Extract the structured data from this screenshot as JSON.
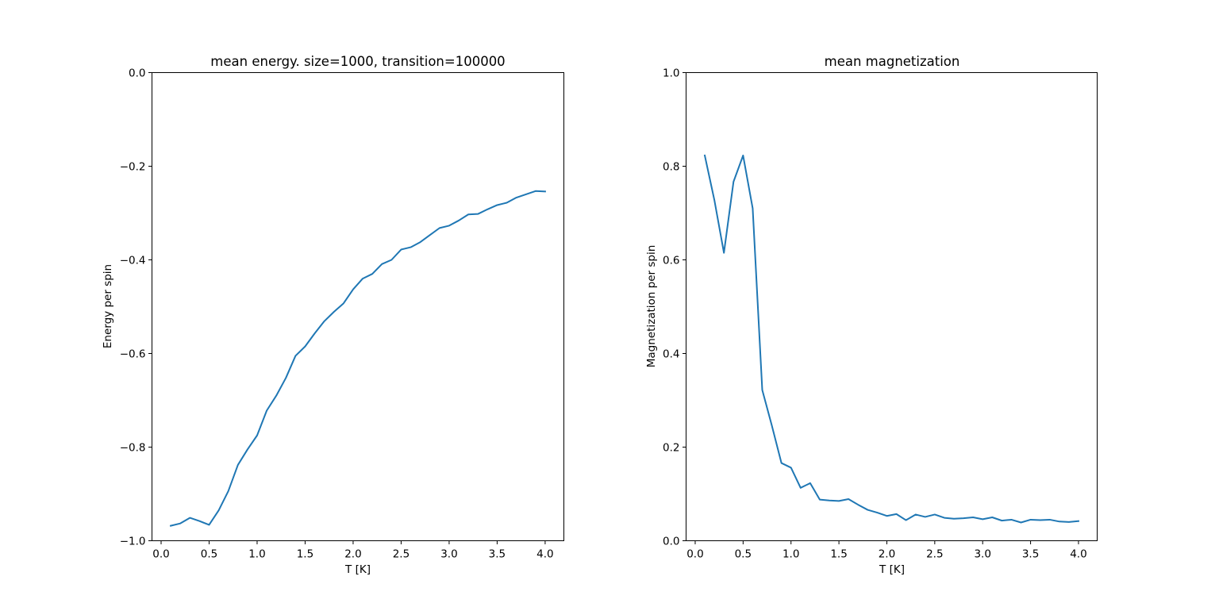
{
  "chart_data": [
    {
      "type": "line",
      "title": "mean energy. size=1000, transition=100000",
      "xlabel": "T [K]",
      "ylabel": "Energy per spin",
      "xlim": [
        -0.095,
        4.195
      ],
      "ylim": [
        -1.0,
        0.0
      ],
      "xticks": [
        0.0,
        0.5,
        1.0,
        1.5,
        2.0,
        2.5,
        3.0,
        3.5,
        4.0
      ],
      "xtick_labels": [
        "0.0",
        "0.5",
        "1.0",
        "1.5",
        "2.0",
        "2.5",
        "3.0",
        "3.5",
        "4.0"
      ],
      "yticks": [
        -1.0,
        -0.8,
        -0.6,
        -0.4,
        -0.2,
        0.0
      ],
      "ytick_labels": [
        "−1.0",
        "−0.8",
        "−0.6",
        "−0.4",
        "−0.2",
        "0.0"
      ],
      "grid": false,
      "color": "#1f77b4",
      "x": [
        0.1,
        0.2,
        0.3,
        0.4,
        0.5,
        0.6,
        0.7,
        0.8,
        0.9,
        1.0,
        1.1,
        1.2,
        1.3,
        1.4,
        1.5,
        1.6,
        1.7,
        1.8,
        1.9,
        2.0,
        2.1,
        2.2,
        2.3,
        2.4,
        2.5,
        2.6,
        2.7,
        2.8,
        2.9,
        3.0,
        3.1,
        3.2,
        3.3,
        3.4,
        3.5,
        3.6,
        3.7,
        3.8,
        3.9,
        4.0
      ],
      "values": [
        -0.968,
        -0.963,
        -0.951,
        -0.958,
        -0.966,
        -0.935,
        -0.894,
        -0.838,
        -0.805,
        -0.775,
        -0.722,
        -0.69,
        -0.652,
        -0.605,
        -0.585,
        -0.557,
        -0.531,
        -0.511,
        -0.493,
        -0.463,
        -0.44,
        -0.43,
        -0.409,
        -0.4,
        -0.378,
        -0.373,
        -0.362,
        -0.347,
        -0.332,
        -0.327,
        -0.316,
        -0.303,
        -0.302,
        -0.292,
        -0.283,
        -0.278,
        -0.267,
        -0.26,
        -0.253,
        -0.254
      ]
    },
    {
      "type": "line",
      "title": "mean magnetization",
      "xlabel": "T [K]",
      "ylabel": "Magnetization per spin",
      "xlim": [
        -0.095,
        4.195
      ],
      "ylim": [
        0.0,
        1.0
      ],
      "xticks": [
        0.0,
        0.5,
        1.0,
        1.5,
        2.0,
        2.5,
        3.0,
        3.5,
        4.0
      ],
      "xtick_labels": [
        "0.0",
        "0.5",
        "1.0",
        "1.5",
        "2.0",
        "2.5",
        "3.0",
        "3.5",
        "4.0"
      ],
      "yticks": [
        0.0,
        0.2,
        0.4,
        0.6,
        0.8,
        1.0
      ],
      "ytick_labels": [
        "0.0",
        "0.2",
        "0.4",
        "0.6",
        "0.8",
        "1.0"
      ],
      "grid": false,
      "color": "#1f77b4",
      "x": [
        0.1,
        0.2,
        0.3,
        0.4,
        0.5,
        0.6,
        0.7,
        0.8,
        0.9,
        1.0,
        1.1,
        1.2,
        1.3,
        1.4,
        1.5,
        1.6,
        1.7,
        1.8,
        1.9,
        2.0,
        2.1,
        2.2,
        2.3,
        2.4,
        2.5,
        2.6,
        2.7,
        2.8,
        2.9,
        3.0,
        3.1,
        3.2,
        3.3,
        3.4,
        3.5,
        3.6,
        3.7,
        3.8,
        3.9,
        4.0
      ],
      "values": [
        0.823,
        0.728,
        0.615,
        0.767,
        0.823,
        0.71,
        0.322,
        0.246,
        0.166,
        0.156,
        0.113,
        0.123,
        0.088,
        0.086,
        0.085,
        0.089,
        0.077,
        0.066,
        0.06,
        0.053,
        0.057,
        0.044,
        0.056,
        0.051,
        0.056,
        0.049,
        0.047,
        0.048,
        0.05,
        0.046,
        0.05,
        0.043,
        0.045,
        0.039,
        0.045,
        0.044,
        0.045,
        0.041,
        0.04,
        0.042
      ]
    }
  ]
}
